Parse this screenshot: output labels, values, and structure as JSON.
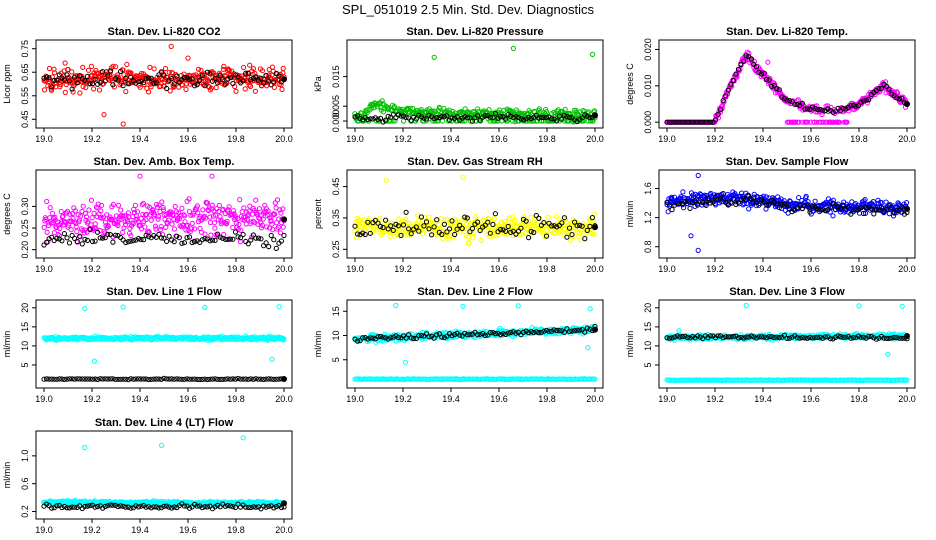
{
  "page": {
    "title": "SPL_051019  2.5 Min. Std. Dev. Diagnostics"
  },
  "colors": {
    "red": "#ff0000",
    "green": "#00c000",
    "magenta": "#ff00ff",
    "yellow": "#ffff00",
    "blue": "#0000ff",
    "cyan": "#00ffff",
    "black": "#000000"
  },
  "chart_data": [
    {
      "id": "co2",
      "type": "scatter",
      "title": "Stan. Dev. Li-820 CO2",
      "ylabel": "Licor ppm",
      "xlim": [
        19.0,
        20.0
      ],
      "ylim": [
        0.43,
        0.77
      ],
      "xticks": [
        "19.0",
        "19.2",
        "19.4",
        "19.6",
        "19.8",
        "20.0"
      ],
      "yticks": [
        {
          "value": 0.45,
          "label": "0.45"
        },
        {
          "value": 0.55,
          "label": "0.55"
        },
        {
          "value": 0.65,
          "label": "0.65"
        },
        {
          "value": 0.75,
          "label": "0.75"
        }
      ],
      "color": "#ff0000",
      "series_mean": 0.615,
      "series_spread": 0.05,
      "anchors": [
        [
          19.0,
          0.61
        ],
        [
          19.25,
          0.63
        ],
        [
          19.5,
          0.62
        ],
        [
          19.75,
          0.63
        ],
        [
          20.0,
          0.62
        ]
      ],
      "black_mean": 0.62,
      "black_spread": 0.035,
      "outliers": [
        [
          19.33,
          0.43
        ],
        [
          19.53,
          0.76
        ],
        [
          19.25,
          0.47
        ],
        [
          19.6,
          0.71
        ]
      ]
    },
    {
      "id": "pressure",
      "type": "scatter",
      "title": "Stan. Dev. Li-820 Pressure",
      "ylabel": "kPa",
      "xlim": [
        19.0,
        20.0
      ],
      "ylim": [
        -0.001,
        0.026
      ],
      "xticks": [
        "19.0",
        "19.2",
        "19.4",
        "19.6",
        "19.8",
        "20.0"
      ],
      "yticks": [
        {
          "value": 0.0,
          "label": "0.000"
        },
        {
          "value": 0.005,
          "label": "0.005"
        },
        {
          "value": 0.015,
          "label": "0.015"
        }
      ],
      "color": "#00c000",
      "series_mean": 0.0028,
      "series_spread": 0.0018,
      "anchors": [
        [
          19.0,
          0.001
        ],
        [
          19.08,
          0.0055
        ],
        [
          19.2,
          0.003
        ],
        [
          19.5,
          0.0025
        ],
        [
          20.0,
          0.002
        ]
      ],
      "black_mean": 0.0012,
      "black_spread": 0.0012,
      "outliers": [
        [
          19.33,
          0.0215
        ],
        [
          19.66,
          0.0245
        ],
        [
          19.99,
          0.0225
        ]
      ]
    },
    {
      "id": "temp",
      "type": "scatter",
      "title": "Stan. Dev. Li-820 Temp.",
      "ylabel": "degrees C",
      "xlim": [
        19.0,
        20.0
      ],
      "ylim": [
        -0.0005,
        0.0215
      ],
      "xticks": [
        "19.0",
        "19.2",
        "19.4",
        "19.6",
        "19.8",
        "20.0"
      ],
      "yticks": [
        {
          "value": 0.0,
          "label": "0.000"
        },
        {
          "value": 0.01,
          "label": "0.010"
        },
        {
          "value": 0.02,
          "label": "0.020"
        }
      ],
      "color": "#ff00ff",
      "series_mean": 0.0,
      "series_spread": 0.0012,
      "anchors": [
        [
          19.0,
          0.0
        ],
        [
          19.2,
          0.0
        ],
        [
          19.25,
          0.008
        ],
        [
          19.33,
          0.0185
        ],
        [
          19.4,
          0.013
        ],
        [
          19.5,
          0.006
        ],
        [
          19.6,
          0.0035
        ],
        [
          19.7,
          0.003
        ],
        [
          19.8,
          0.005
        ],
        [
          19.9,
          0.01
        ],
        [
          20.0,
          0.005
        ]
      ],
      "black_mean": 0.0,
      "black_spread": 0.0008,
      "outliers": [
        [
          19.42,
          0.0165
        ]
      ]
    },
    {
      "id": "boxtemp",
      "type": "scatter",
      "title": "Stan. Dev. Amb. Box Temp.",
      "ylabel": "degrees C",
      "xlim": [
        19.0,
        20.0
      ],
      "ylim": [
        0.19,
        0.375
      ],
      "xticks": [
        "19.0",
        "19.2",
        "19.4",
        "19.6",
        "19.8",
        "20.0"
      ],
      "yticks": [
        {
          "value": 0.2,
          "label": "0.20"
        },
        {
          "value": 0.25,
          "label": "0.25"
        },
        {
          "value": 0.3,
          "label": "0.30"
        }
      ],
      "color": "#ff00ff",
      "series_mean": 0.27,
      "series_spread": 0.04,
      "anchors": [
        [
          19.0,
          0.26
        ],
        [
          19.5,
          0.275
        ],
        [
          20.0,
          0.27
        ]
      ],
      "black_mean": 0.225,
      "black_spread": 0.015,
      "outliers": [
        [
          19.4,
          0.37
        ],
        [
          19.7,
          0.37
        ]
      ]
    },
    {
      "id": "rh",
      "type": "scatter",
      "title": "Stan. Dev. Gas Stream RH",
      "ylabel": "percent",
      "xlim": [
        19.0,
        20.0
      ],
      "ylim": [
        0.235,
        0.49
      ],
      "xticks": [
        "19.0",
        "19.2",
        "19.4",
        "19.6",
        "19.8",
        "20.0"
      ],
      "yticks": [
        {
          "value": 0.25,
          "label": "0.25"
        },
        {
          "value": 0.35,
          "label": "0.35"
        },
        {
          "value": 0.45,
          "label": "0.45"
        }
      ],
      "color": "#ffff00",
      "series_mean": 0.32,
      "series_spread": 0.035,
      "anchors": [
        [
          19.0,
          0.32
        ],
        [
          19.5,
          0.32
        ],
        [
          20.0,
          0.32
        ]
      ],
      "black_mean": 0.32,
      "black_spread": 0.04,
      "outliers": [
        [
          19.45,
          0.48
        ],
        [
          19.13,
          0.47
        ]
      ]
    },
    {
      "id": "sampleflow",
      "type": "scatter",
      "title": "Stan. Dev. Sample Flow",
      "ylabel": "ml/min",
      "xlim": [
        19.0,
        20.0
      ],
      "ylim": [
        0.7,
        1.8
      ],
      "xticks": [
        "19.0",
        "19.2",
        "19.4",
        "19.6",
        "19.8",
        "20.0"
      ],
      "yticks": [
        {
          "value": 0.8,
          "label": "0.8"
        },
        {
          "value": 1.2,
          "label": "1.2"
        },
        {
          "value": 1.6,
          "label": "1.6"
        }
      ],
      "color": "#0000ff",
      "series_mean": 1.4,
      "series_spread": 0.1,
      "anchors": [
        [
          19.0,
          1.42
        ],
        [
          19.3,
          1.48
        ],
        [
          19.5,
          1.38
        ],
        [
          20.0,
          1.32
        ]
      ],
      "black_mean": 1.38,
      "black_spread": 0.07,
      "outliers": [
        [
          19.13,
          0.75
        ],
        [
          19.13,
          1.78
        ],
        [
          19.1,
          0.95
        ]
      ]
    },
    {
      "id": "line1",
      "type": "scatter",
      "title": "Stan. Dev. Line 1 Flow",
      "ylabel": "ml/min",
      "xlim": [
        19.0,
        20.0
      ],
      "ylim": [
        0,
        21
      ],
      "xticks": [
        "19.0",
        "19.2",
        "19.4",
        "19.6",
        "19.8",
        "20.0"
      ],
      "yticks": [
        {
          "value": 5,
          "label": "5"
        },
        {
          "value": 10,
          "label": "10"
        },
        {
          "value": 15,
          "label": "15"
        },
        {
          "value": 20,
          "label": "20"
        }
      ],
      "color": "#00ffff",
      "series_mean": 12,
      "series_spread": 0.45,
      "anchors": [
        [
          19.0,
          12
        ],
        [
          20.0,
          12
        ]
      ],
      "black_mean": 1.3,
      "black_spread": 0.12,
      "outliers": [
        [
          19.17,
          19.8
        ],
        [
          19.33,
          20.2
        ],
        [
          19.67,
          20.1
        ],
        [
          19.98,
          20.3
        ],
        [
          19.21,
          6
        ],
        [
          19.95,
          6.5
        ]
      ]
    },
    {
      "id": "line2",
      "type": "scatter",
      "title": "Stan. Dev. Line 2 Flow",
      "ylabel": "ml/min",
      "xlim": [
        19.0,
        20.0
      ],
      "ylim": [
        0,
        16.5
      ],
      "xticks": [
        "19.0",
        "19.2",
        "19.4",
        "19.6",
        "19.8",
        "20.0"
      ],
      "yticks": [
        {
          "value": 5,
          "label": "5"
        },
        {
          "value": 10,
          "label": "10"
        },
        {
          "value": 15,
          "label": "15"
        }
      ],
      "color": "#00ffff",
      "series_mean": 10.3,
      "series_spread": 0.7,
      "anchors": [
        [
          19.0,
          9.3
        ],
        [
          19.5,
          10.3
        ],
        [
          20.0,
          11.2
        ]
      ],
      "black_mean": 10.2,
      "black_spread": 0.5,
      "bottom_band": 1.0,
      "outliers": [
        [
          19.17,
          16.2
        ],
        [
          19.21,
          4.5
        ],
        [
          19.45,
          16
        ],
        [
          19.68,
          16.1
        ],
        [
          19.98,
          15.5
        ],
        [
          19.97,
          7.5
        ]
      ]
    },
    {
      "id": "line3",
      "type": "scatter",
      "title": "Stan. Dev. Line 3 Flow",
      "ylabel": "ml/min",
      "xlim": [
        19.0,
        20.0
      ],
      "ylim": [
        0,
        21
      ],
      "xticks": [
        "19.0",
        "19.2",
        "19.4",
        "19.6",
        "19.8",
        "20.0"
      ],
      "yticks": [
        {
          "value": 5,
          "label": "5"
        },
        {
          "value": 10,
          "label": "10"
        },
        {
          "value": 15,
          "label": "15"
        },
        {
          "value": 20,
          "label": "20"
        }
      ],
      "color": "#00ffff",
      "series_mean": 12.4,
      "series_spread": 0.6,
      "anchors": [
        [
          19.0,
          12.2
        ],
        [
          20.0,
          12.6
        ]
      ],
      "black_mean": 12.3,
      "black_spread": 0.4,
      "bottom_band": 1.0,
      "outliers": [
        [
          19.33,
          20.6
        ],
        [
          19.8,
          20.5
        ],
        [
          19.98,
          20.4
        ],
        [
          19.92,
          7.8
        ],
        [
          19.05,
          14
        ]
      ]
    },
    {
      "id": "line4",
      "type": "scatter",
      "title": "Stan. Dev. Line 4 (LT) Flow",
      "ylabel": "ml/min",
      "xlim": [
        19.0,
        20.0
      ],
      "ylim": [
        0.15,
        1.3
      ],
      "xticks": [
        "19.0",
        "19.2",
        "19.4",
        "19.6",
        "19.8",
        "20.0"
      ],
      "yticks": [
        {
          "value": 0.2,
          "label": "0.2"
        },
        {
          "value": 0.6,
          "label": "0.6"
        },
        {
          "value": 1.0,
          "label": "1.0"
        }
      ],
      "color": "#00ffff",
      "series_mean": 0.32,
      "series_spread": 0.025,
      "anchors": [
        [
          19.0,
          0.33
        ],
        [
          20.0,
          0.32
        ]
      ],
      "black_mean": 0.27,
      "black_spread": 0.03,
      "outliers": [
        [
          19.17,
          1.12
        ],
        [
          19.49,
          1.15
        ],
        [
          19.83,
          1.26
        ]
      ]
    }
  ]
}
